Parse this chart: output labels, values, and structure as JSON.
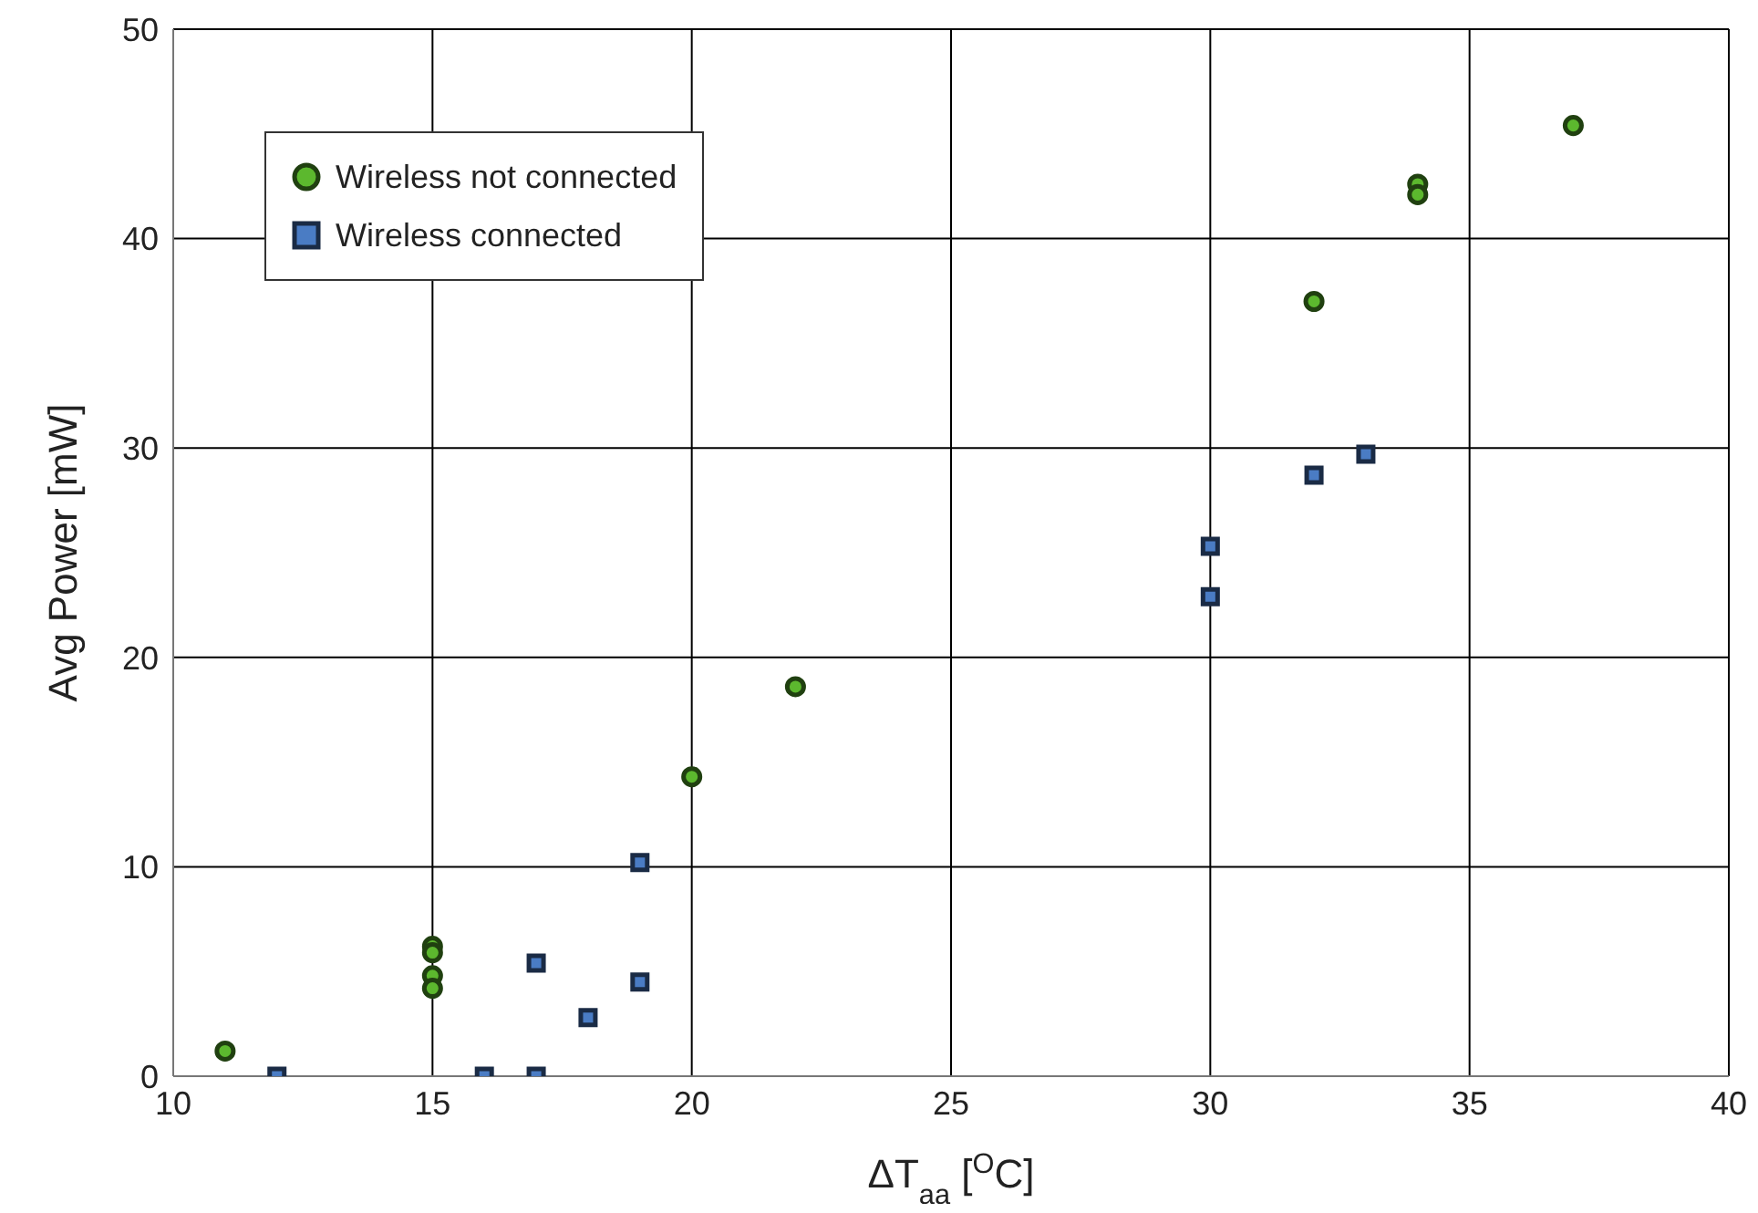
{
  "chart_data": {
    "type": "scatter",
    "xlabel": "ΔT$_{aa}$ [$^{O}$C]",
    "ylabel": "Avg Power [mW]",
    "xlim": [
      10,
      40
    ],
    "xticks": [
      10,
      15,
      20,
      25,
      30,
      35,
      40
    ],
    "ylim": [
      0,
      50
    ],
    "yticks": [
      0,
      10,
      20,
      30,
      40,
      50
    ],
    "grid": true,
    "legend": "top left",
    "series": [
      {
        "name": "Wireless not connected",
        "color": "#5cb82e",
        "marker": "circle",
        "x": [
          11,
          15,
          15,
          15,
          15,
          20,
          22,
          32,
          34,
          34,
          37
        ],
        "values": [
          1.2,
          6.2,
          5.9,
          4.8,
          4.2,
          14.3,
          18.6,
          37,
          42.6,
          42.1,
          45.4
        ]
      },
      {
        "name": "Wireless connected",
        "color": "#4a7cc4",
        "marker": "square",
        "x": [
          12,
          16,
          17,
          17,
          18,
          19,
          19,
          30,
          30,
          32,
          33
        ],
        "values": [
          0,
          0,
          0,
          5.4,
          2.8,
          10.2,
          4.5,
          25.3,
          22.9,
          28.7,
          29.7
        ]
      }
    ]
  }
}
